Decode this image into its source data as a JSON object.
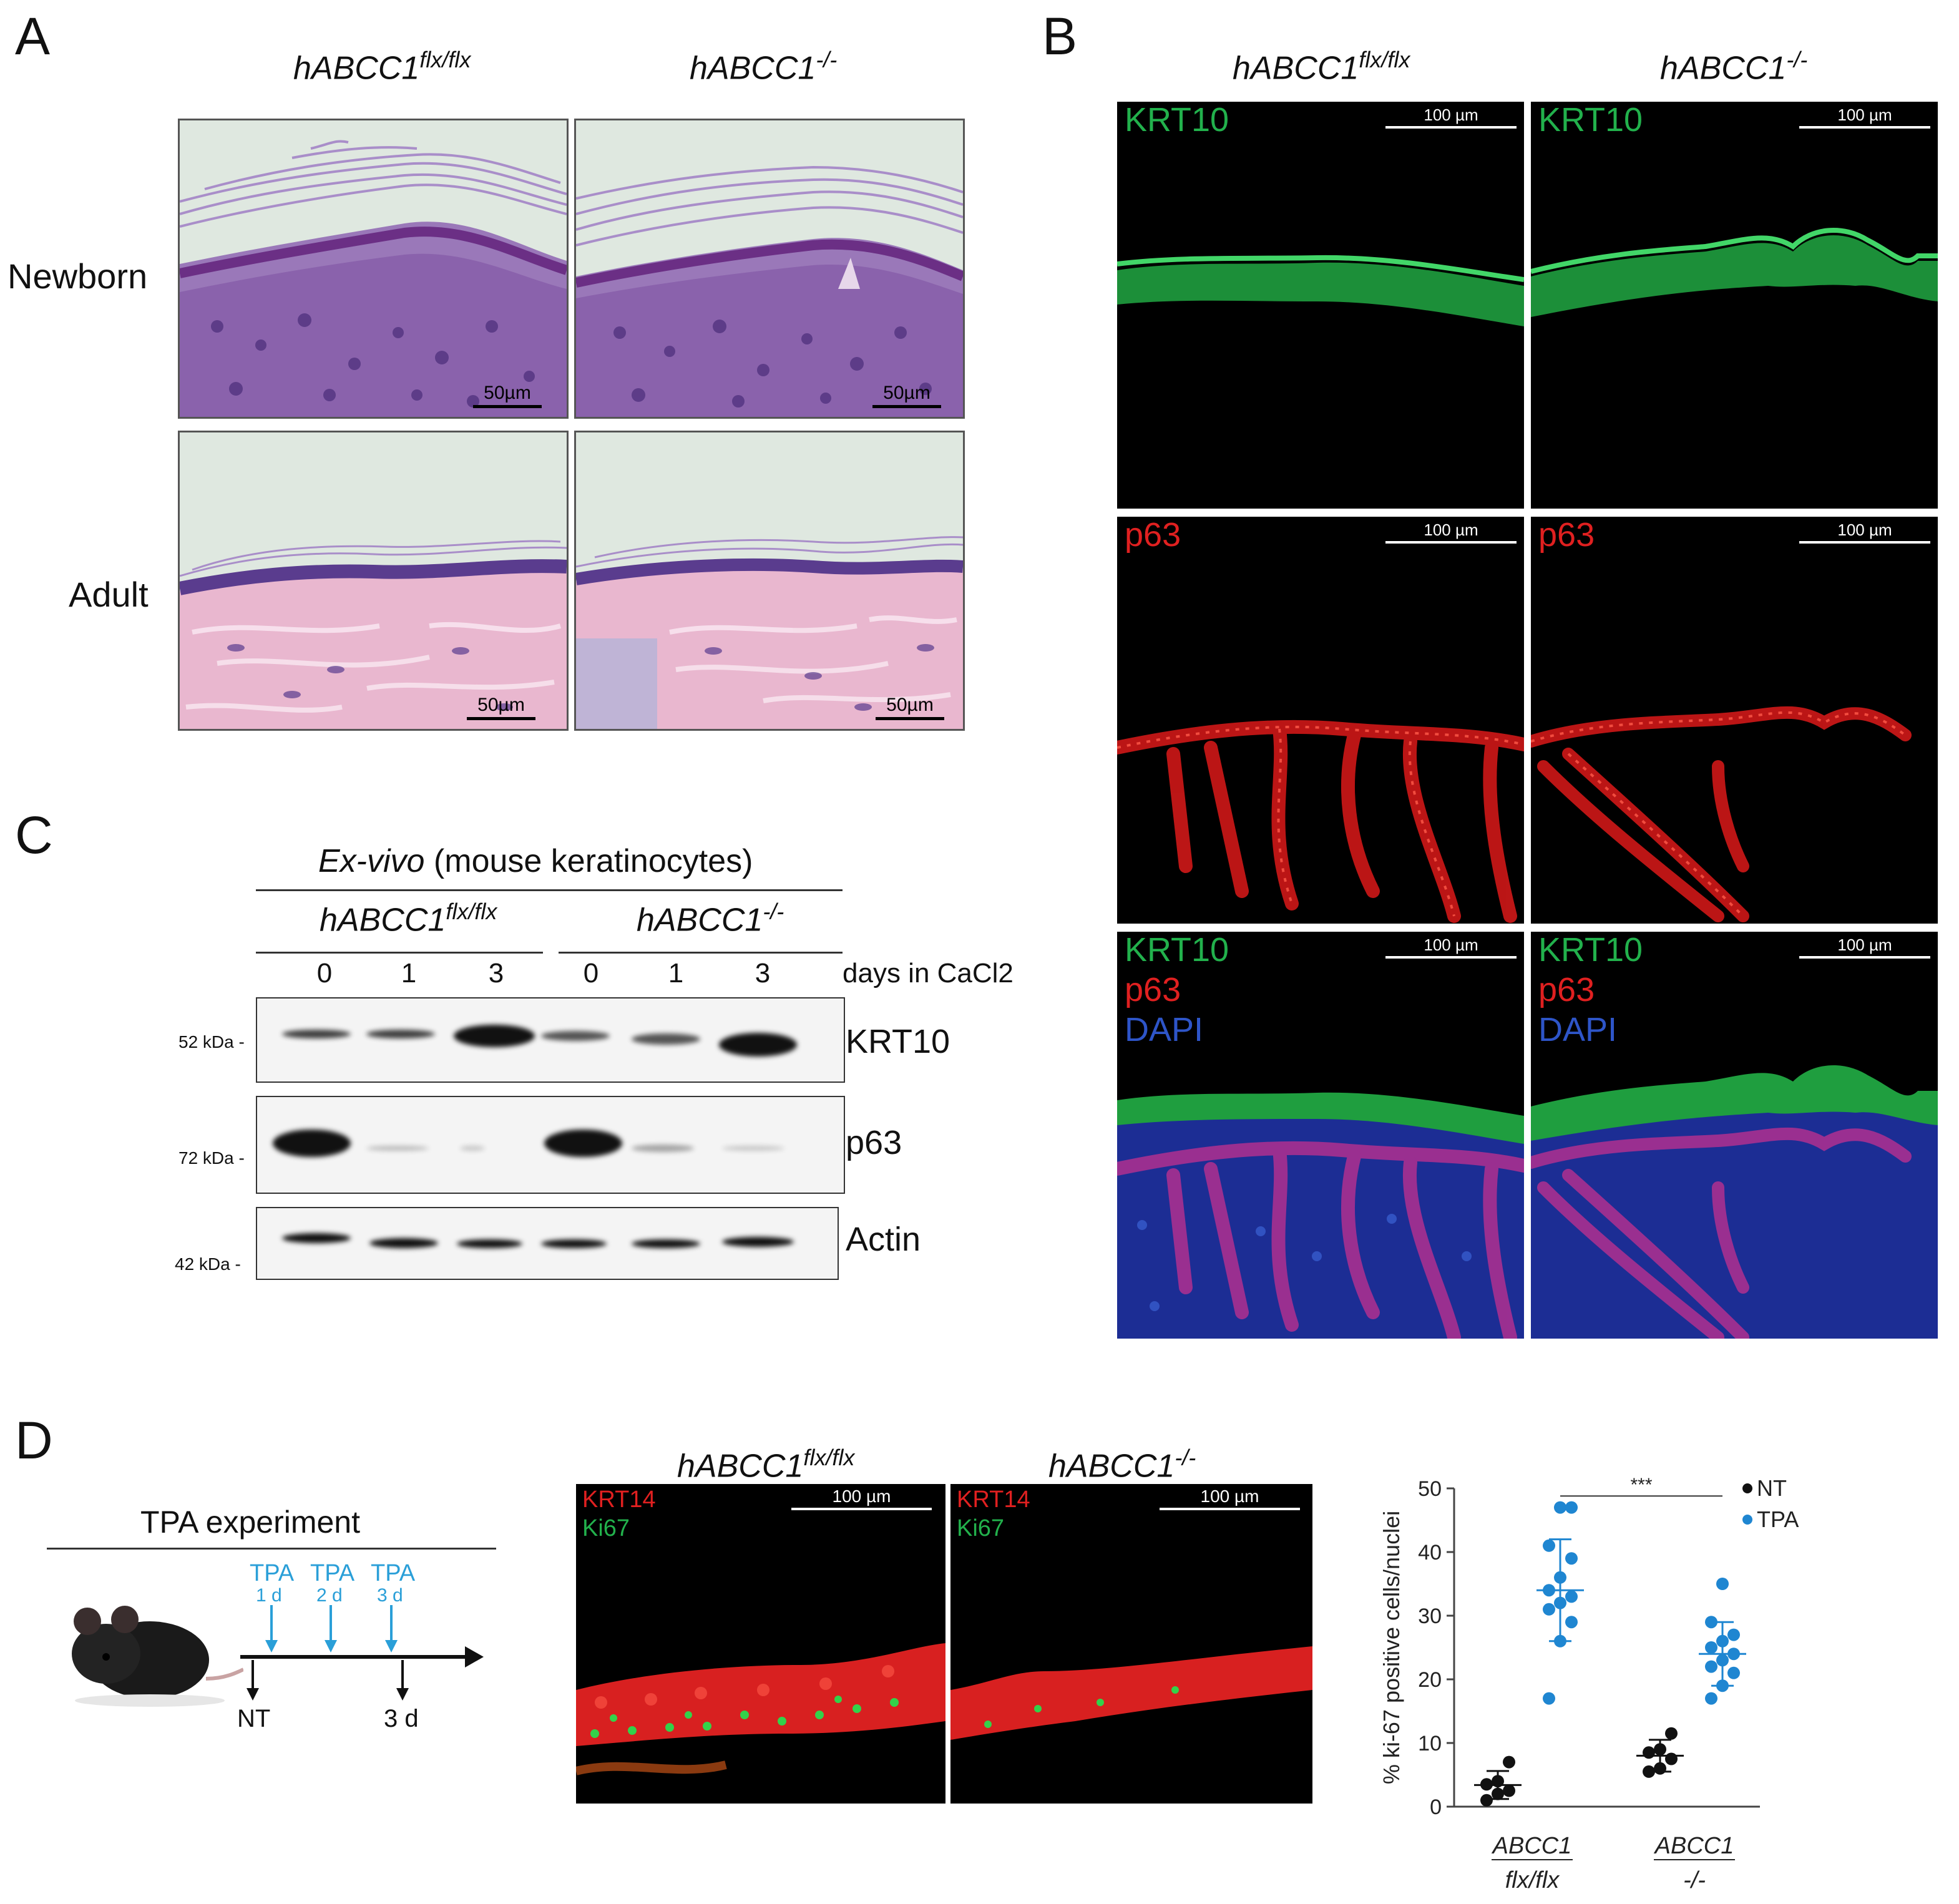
{
  "panels": {
    "a": "A",
    "b": "B",
    "c": "C",
    "d": "D"
  },
  "panel_a": {
    "col1_geno": "hABCC1",
    "col1_sup": "flx/flx",
    "col2_geno": "hABCC1",
    "col2_sup": "-/-",
    "row1": "Newborn",
    "row2": "Adult",
    "scale": "50µm",
    "colors": {
      "newborn_bg": "#dfe8e0",
      "newborn_tissue": "#8a5fa6",
      "adult_tissue": "#e9b7cf"
    }
  },
  "panel_b": {
    "col1_geno": "hABCC1",
    "col1_sup": "flx/flx",
    "col2_geno": "hABCC1",
    "col2_sup": "-/-",
    "scale": "100 µm",
    "krt10": "KRT10",
    "p63": "p63",
    "dapi": "DAPI",
    "colors": {
      "krt10": "#22b14c",
      "p63": "#e02020",
      "dapi": "#2e55c8"
    }
  },
  "panel_c": {
    "title_italic": "Ex-vivo",
    "title_rest": " (mouse keratinocytes)",
    "geno1": "hABCC1",
    "geno1_sup": "flx/flx",
    "geno2": "hABCC1",
    "geno2_sup": "-/-",
    "lanes": [
      "0",
      "1",
      "3",
      "0",
      "1",
      "3"
    ],
    "lane_axis": "days in CaCl2",
    "blots": [
      {
        "label": "KRT10",
        "kda": "52 kDa -"
      },
      {
        "label": "p63",
        "kda": "72 kDa -"
      },
      {
        "label": "Actin",
        "kda": "42 kDa -"
      }
    ]
  },
  "panel_d": {
    "schema_title": "TPA experiment",
    "tpa_label": "TPA",
    "tpa_days": [
      "1 d",
      "2 d",
      "3 d"
    ],
    "nt_label": "NT",
    "end_label": "3 d",
    "geno1": "hABCC1",
    "geno1_sup": "flx/flx",
    "geno2": "hABCC1",
    "geno2_sup": "-/-",
    "krt14": "KRT14",
    "ki67": "Ki67",
    "scale": "100 µm",
    "colors": {
      "nt": "#111111",
      "tpa": "#1f86d1"
    }
  },
  "chart_data": {
    "type": "scatter",
    "ylabel": "% ki-67 positive cells/nuclei",
    "ylim": [
      0,
      50
    ],
    "yticks": [
      0,
      10,
      20,
      30,
      40,
      50
    ],
    "categories": [
      {
        "line1": "ABCC1",
        "line2": "flx/flx"
      },
      {
        "line1": "ABCC1",
        "line2": "-/-"
      }
    ],
    "legend": [
      "NT",
      "TPA"
    ],
    "significance": "***",
    "series": [
      {
        "name": "NT",
        "group": 0,
        "mean": 3.4,
        "sd": 2.2,
        "values": [
          1,
          2,
          2.5,
          3.5,
          4,
          7
        ]
      },
      {
        "name": "TPA",
        "group": 0,
        "mean": 34,
        "sd": 8,
        "values": [
          17,
          26,
          29,
          31,
          32,
          33,
          34,
          36,
          39,
          41,
          47,
          47
        ]
      },
      {
        "name": "NT",
        "group": 1,
        "mean": 8,
        "sd": 2.5,
        "values": [
          5.5,
          6,
          7.5,
          8.5,
          9,
          11.5
        ]
      },
      {
        "name": "TPA",
        "group": 1,
        "mean": 24,
        "sd": 5,
        "values": [
          17,
          19,
          21,
          22,
          23,
          24,
          25,
          26,
          27,
          29,
          35
        ]
      }
    ]
  }
}
